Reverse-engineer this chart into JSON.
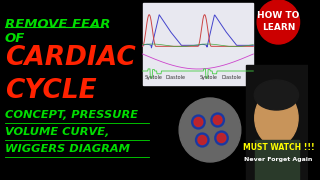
{
  "bg_color": "#000000",
  "title_line1": "REMOVE FEAR",
  "title_line1b": "OF",
  "title_line2": "CARDIAC",
  "title_line3": "CYCLE",
  "subtitle_line1": "CONCEPT, PRESSURE",
  "subtitle_line2": "VOLUME CURVE,",
  "subtitle_line3": "WIGGERS DIAGRAM",
  "title_color": "#00dd00",
  "cardiac_color": "#ff2200",
  "subtitle_color": "#00dd00",
  "badge_color": "#cc0000",
  "badge_text1": "HOW TO",
  "badge_text2": "LEARN",
  "must_watch": "MUST WATCH !!!",
  "never_forget": "Never Forget Again",
  "bottom_right_bg": "#000000",
  "wiggers_bg": "#e8e8f0",
  "heart_circle_bg": "#888888"
}
